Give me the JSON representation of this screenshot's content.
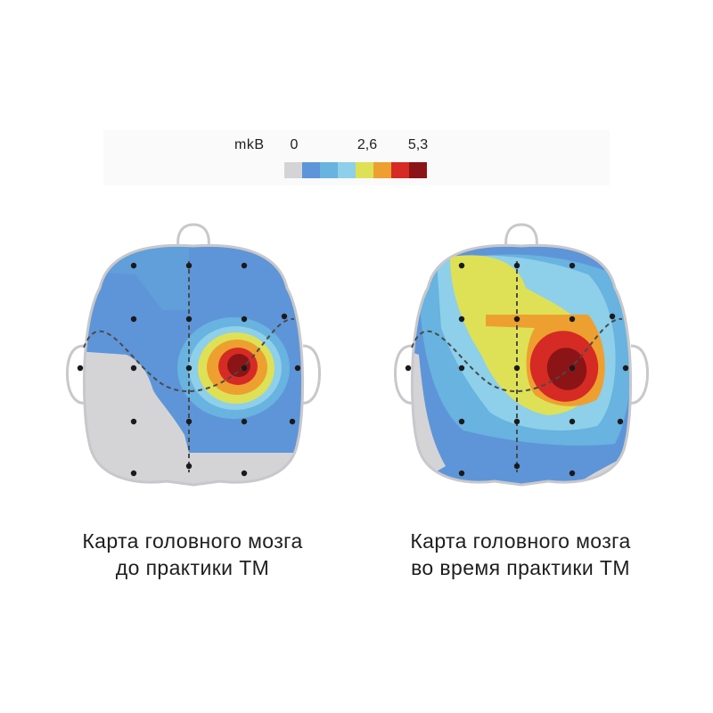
{
  "legend": {
    "unit": "mkB",
    "ticks": [
      {
        "label": "0",
        "value": 0
      },
      {
        "label": "2,6",
        "value": 2.6
      },
      {
        "label": "5,3",
        "value": 5.3
      }
    ],
    "range": [
      0,
      5.3
    ],
    "colors": [
      "#d4d4d6",
      "#5e95d8",
      "#68b3df",
      "#8ecfea",
      "#dee156",
      "#eda02f",
      "#d52b24",
      "#8b1416"
    ]
  },
  "maps": [
    {
      "id": "before",
      "caption_line1": "Карта головного мозга",
      "caption_line2": "до практики ТМ"
    },
    {
      "id": "during",
      "caption_line1": "Карта головного мозга",
      "caption_line2": "во время практики ТМ"
    }
  ],
  "colors": {
    "head_outline": "#c8c8cc",
    "electrode": "#1a1a1a",
    "guide_line": "#4a4a4a"
  }
}
